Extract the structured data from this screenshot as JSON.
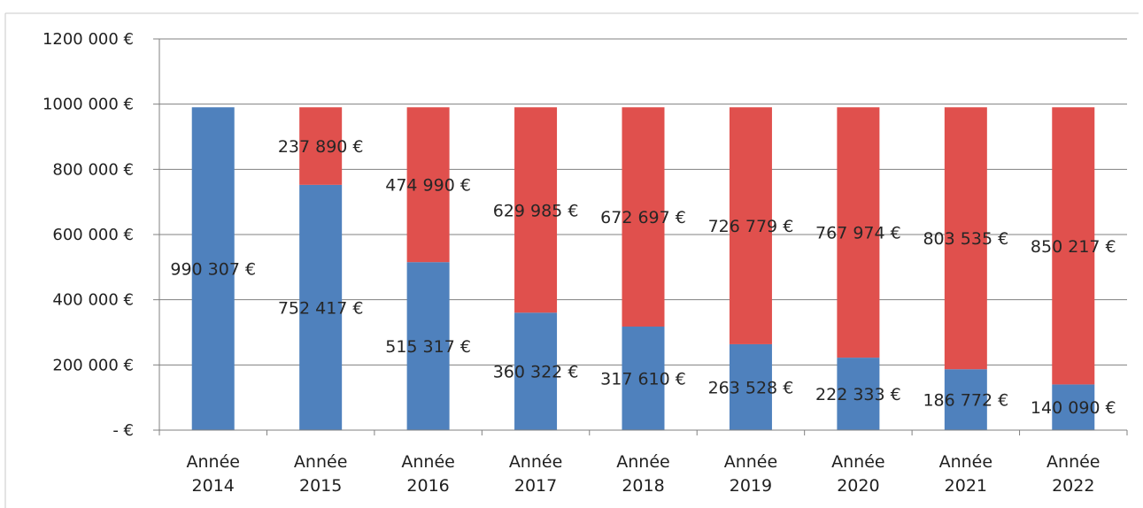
{
  "chart_data": {
    "type": "bar",
    "stacked": true,
    "categories": [
      [
        "Année",
        "2014"
      ],
      [
        "Année",
        "2015"
      ],
      [
        "Année",
        "2016"
      ],
      [
        "Année",
        "2017"
      ],
      [
        "Année",
        "2018"
      ],
      [
        "Année",
        "2019"
      ],
      [
        "Année",
        "2020"
      ],
      [
        "Année",
        "2021"
      ],
      [
        "Année",
        "2022"
      ]
    ],
    "series": [
      {
        "color": "#4f81bd",
        "values": [
          990307,
          752417,
          515317,
          360322,
          317610,
          263528,
          222333,
          186772,
          140090
        ],
        "labels": [
          "990 307 €",
          "752 417 €",
          "515 317 €",
          "360 322 €",
          "317 610 €",
          "263 528 €",
          "222 333 €",
          "186 772 €",
          "140 090 €"
        ]
      },
      {
        "color": "#e0504d",
        "values": [
          0,
          237890,
          474990,
          629985,
          672697,
          726779,
          767974,
          803535,
          850217
        ],
        "labels": [
          "",
          "237 890 €",
          "474 990 €",
          "629 985 €",
          "672 697 €",
          "726 779 €",
          "767 974 €",
          "803 535 €",
          "850 217 €"
        ]
      }
    ],
    "ylim": [
      0,
      1200000
    ],
    "yticks": [
      0,
      200000,
      400000,
      600000,
      800000,
      1000000,
      1200000
    ],
    "ytick_labels": [
      "-  €",
      "200 000 €",
      "400 000 €",
      "600 000 €",
      "800 000 €",
      "1000 000 €",
      "1200 000 €"
    ],
    "grid": true,
    "legend": "none"
  }
}
